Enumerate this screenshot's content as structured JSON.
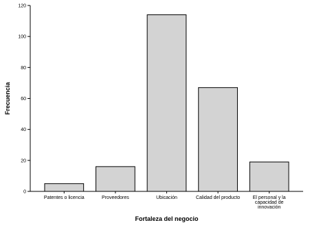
{
  "chart_data": {
    "type": "bar",
    "categories": [
      [
        "Patentes o licencia"
      ],
      [
        "Proveedores"
      ],
      [
        "Ubicación"
      ],
      [
        "Calidad del producto"
      ],
      [
        "El personal y la",
        "capacidad de",
        "innovación"
      ]
    ],
    "values": [
      5,
      16,
      114,
      67,
      19
    ],
    "xlabel": "Fortaleza del negocio",
    "ylabel": "Frecuencia",
    "ylim": [
      0,
      120
    ],
    "yticks": [
      0,
      20,
      40,
      60,
      80,
      100,
      120
    ],
    "grid": false,
    "bar_color": "#d3d3d3"
  }
}
